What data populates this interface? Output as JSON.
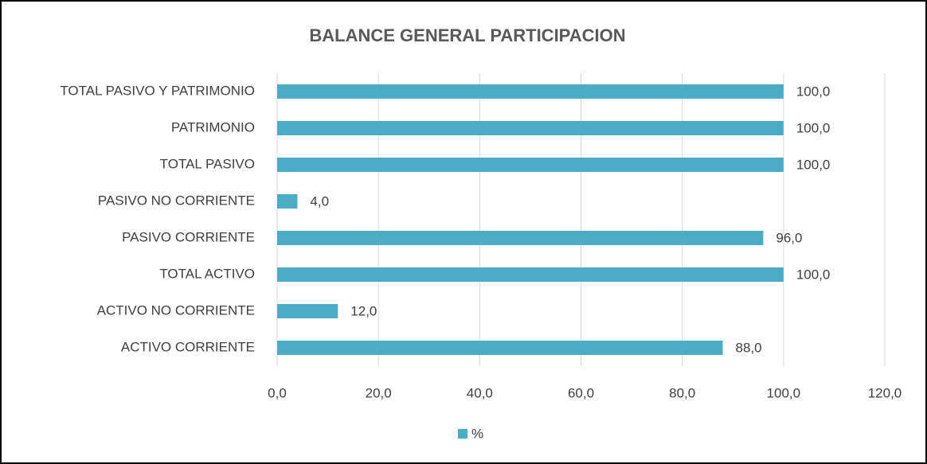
{
  "chart_data": {
    "type": "bar",
    "orientation": "horizontal",
    "title": "BALANCE GENERAL PARTICIPACION",
    "categories": [
      "TOTAL PASIVO Y PATRIMONIO",
      "PATRIMONIO",
      "TOTAL PASIVO",
      "PASIVO NO CORRIENTE",
      "PASIVO CORRIENTE",
      "TOTAL ACTIVO",
      "ACTIVO NO CORRIENTE",
      "ACTIVO CORRIENTE"
    ],
    "series": [
      {
        "name": "%",
        "color": "#4bacc6",
        "values": [
          100,
          100,
          100,
          4,
          96,
          100,
          12,
          88
        ],
        "value_labels": [
          "100,0",
          "100,0",
          "100,0",
          "4,0",
          "96,0",
          "100,0",
          "12,0",
          "88,0"
        ]
      }
    ],
    "xlim": [
      0,
      120
    ],
    "xticks": [
      {
        "value": 0,
        "label": "0,0"
      },
      {
        "value": 20,
        "label": "20,0"
      },
      {
        "value": 40,
        "label": "40,0"
      },
      {
        "value": 60,
        "label": "60,0"
      },
      {
        "value": 80,
        "label": "80,0"
      },
      {
        "value": 100,
        "label": "100,0"
      },
      {
        "value": 120,
        "label": "120,0"
      }
    ],
    "grid": true,
    "legend": "bottom"
  }
}
